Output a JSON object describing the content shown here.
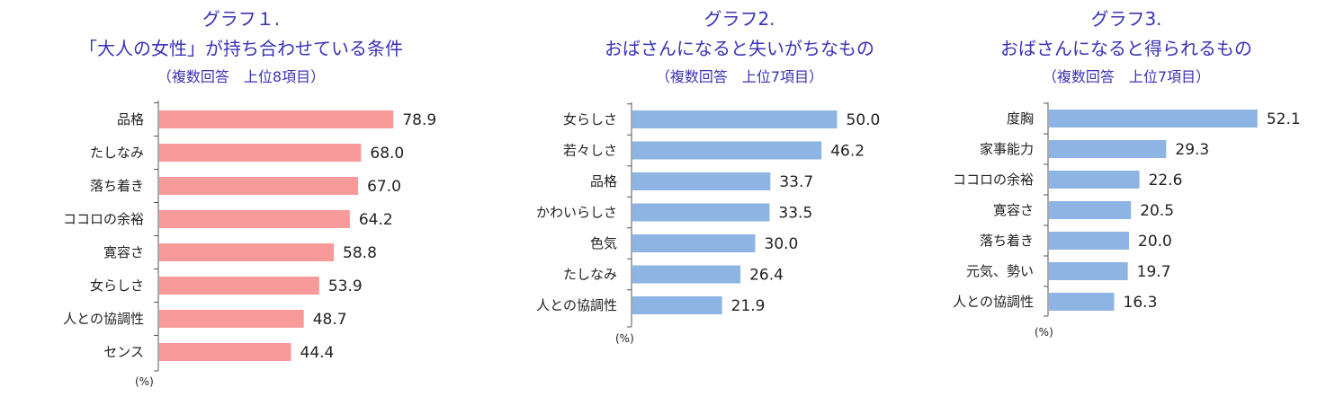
{
  "chart_data": [
    {
      "type": "bar",
      "orientation": "horizontal",
      "title_line1": "グラフ１.",
      "title_line2": "「大人の女性」が持ち合わせている条件",
      "subtitle": "（複数回答　上位8項目）",
      "unit": "(%)",
      "color": "#f99a9a",
      "categories": [
        "品格",
        "たしなみ",
        "落ち着き",
        "ココロの余裕",
        "寛容さ",
        "女らしさ",
        "人との協調性",
        "センス"
      ],
      "values": [
        78.9,
        68.0,
        67.0,
        64.2,
        58.8,
        53.9,
        48.7,
        44.4
      ],
      "value_labels": [
        "78.9",
        "68.0",
        "67.0",
        "64.2",
        "58.8",
        "53.9",
        "48.7",
        "44.4"
      ]
    },
    {
      "type": "bar",
      "orientation": "horizontal",
      "title_line1": "グラフ2.",
      "title_line2": "おばさんになると失いがちなもの",
      "subtitle": "（複数回答　上位7項目）",
      "unit": "(%)",
      "color": "#8eb4e3",
      "categories": [
        "女らしさ",
        "若々しさ",
        "品格",
        "かわいらしさ",
        "色気",
        "たしなみ",
        "人との協調性"
      ],
      "values": [
        50.0,
        46.2,
        33.7,
        33.5,
        30.0,
        26.4,
        21.9
      ],
      "value_labels": [
        "50.0",
        "46.2",
        "33.7",
        "33.5",
        "30.0",
        "26.4",
        "21.9"
      ]
    },
    {
      "type": "bar",
      "orientation": "horizontal",
      "title_line1": "グラフ3.",
      "title_line2": "おばさんになると得られるもの",
      "subtitle": "（複数回答　上位7項目）",
      "unit": "(%)",
      "color": "#8eb4e3",
      "categories": [
        "度胸",
        "家事能力",
        "ココロの余裕",
        "寛容さ",
        "落ち着き",
        "元気、勢い",
        "人との協調性"
      ],
      "values": [
        52.1,
        29.3,
        22.6,
        20.5,
        20.0,
        19.7,
        16.3
      ],
      "value_labels": [
        "52.1",
        "29.3",
        "22.6",
        "20.5",
        "20.0",
        "19.7",
        "16.3"
      ]
    }
  ]
}
